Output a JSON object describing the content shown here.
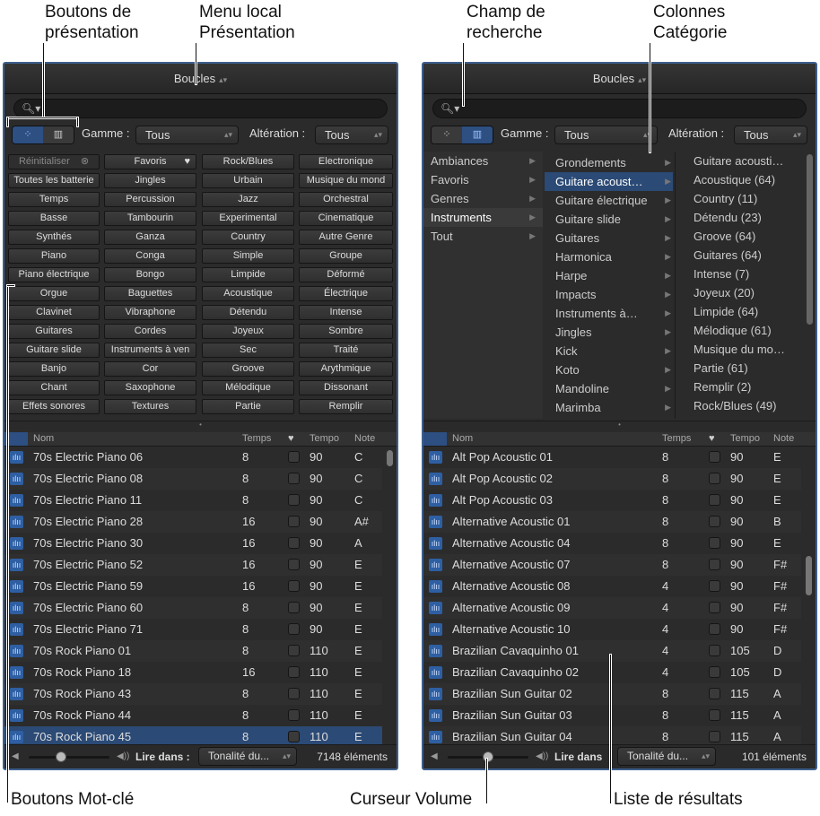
{
  "callouts": {
    "view_buttons": "Boutons de présentation",
    "view_menu": "Menu local Présentation",
    "search_field": "Champ de recherche",
    "category_columns": "Colonnes Catégorie",
    "keyword_buttons": "Boutons Mot-clé",
    "volume_slider": "Curseur Volume",
    "results_list": "Liste de résultats"
  },
  "icons": {
    "search": "search-icon",
    "button_view": "grid-icon",
    "column_view": "columns-icon",
    "favorite": "heart-icon",
    "loop": "waveform-icon",
    "volume": "speaker-icon"
  },
  "colors": {
    "accent": "#2b4a75",
    "panel_bg": "#2b2b2b",
    "frame": "#3d5f8c"
  },
  "left": {
    "title": "Boucles",
    "gamme_label": "Gamme :",
    "gamme_value": "Tous",
    "alteration_label": "Altération :",
    "alteration_value": "Tous",
    "keywords": [
      [
        "Réinitialiser",
        "Favoris",
        "Rock/Blues",
        "Electronique"
      ],
      [
        "Toutes les batterie",
        "Jingles",
        "Urbain",
        "Musique du mond"
      ],
      [
        "Temps",
        "Percussion",
        "Jazz",
        "Orchestral"
      ],
      [
        "Basse",
        "Tambourin",
        "Experimental",
        "Cinematique"
      ],
      [
        "Synthés",
        "Ganza",
        "Country",
        "Autre Genre"
      ],
      [
        "Piano",
        "Conga",
        "Simple",
        "Groupe"
      ],
      [
        "Piano électrique",
        "Bongo",
        "Limpide",
        "Déformé"
      ],
      [
        "Orgue",
        "Baguettes",
        "Acoustique",
        "Électrique"
      ],
      [
        "Clavinet",
        "Vibraphone",
        "Détendu",
        "Intense"
      ],
      [
        "Guitares",
        "Cordes",
        "Joyeux",
        "Sombre"
      ],
      [
        "Guitare slide",
        "Instruments à ven",
        "Sec",
        "Traité"
      ],
      [
        "Banjo",
        "Cor",
        "Groove",
        "Arythmique"
      ],
      [
        "Chant",
        "Saxophone",
        "Mélodique",
        "Dissonant"
      ],
      [
        "Effets sonores",
        "Textures",
        "Partie",
        "Remplir"
      ]
    ],
    "columns": {
      "name": "Nom",
      "beats": "Temps",
      "tempo": "Tempo",
      "key": "Note"
    },
    "rows": [
      [
        "70s Electric Piano 06",
        "8",
        "90",
        "C"
      ],
      [
        "70s Electric Piano 08",
        "8",
        "90",
        "C"
      ],
      [
        "70s Electric Piano 11",
        "8",
        "90",
        "C"
      ],
      [
        "70s Electric Piano 28",
        "16",
        "90",
        "A#"
      ],
      [
        "70s Electric Piano 30",
        "16",
        "90",
        "A"
      ],
      [
        "70s Electric Piano 52",
        "16",
        "90",
        "E"
      ],
      [
        "70s Electric Piano 59",
        "16",
        "90",
        "E"
      ],
      [
        "70s Electric Piano 60",
        "8",
        "90",
        "E"
      ],
      [
        "70s Electric Piano 71",
        "8",
        "90",
        "E"
      ],
      [
        "70s Rock Piano 01",
        "8",
        "110",
        "E"
      ],
      [
        "70s Rock Piano 18",
        "16",
        "110",
        "E"
      ],
      [
        "70s Rock Piano 43",
        "8",
        "110",
        "E"
      ],
      [
        "70s Rock Piano 44",
        "8",
        "110",
        "E"
      ],
      [
        "70s Rock Piano 45",
        "8",
        "110",
        "E"
      ]
    ],
    "selected_row": 13,
    "play_in_label": "Lire dans :",
    "play_in_value": "Tonalité du...",
    "count": "7148 éléments",
    "volume": 0.4
  },
  "right": {
    "title": "Boucles",
    "gamme_label": "Gamme :",
    "gamme_value": "Tous",
    "alteration_label": "Altération :",
    "alteration_value": "Tous",
    "col1": [
      "Ambiances",
      "Favoris",
      "Genres",
      "Instruments",
      "Tout"
    ],
    "col1_selected": 3,
    "col2": [
      "Grondements",
      "Guitare acoust…",
      "Guitare électrique",
      "Guitare slide",
      "Guitares",
      "Harmonica",
      "Harpe",
      "Impacts",
      "Instruments à…",
      "Jingles",
      "Kick",
      "Koto",
      "Mandoline",
      "Marimba"
    ],
    "col2_selected": 1,
    "col3": [
      "Guitare acousti…",
      "Acoustique (64)",
      "Country (11)",
      "Détendu (23)",
      "Groove (64)",
      "Guitares (64)",
      "Intense (7)",
      "Joyeux (20)",
      "Limpide (64)",
      "Mélodique (61)",
      "Musique du mo…",
      "Partie (61)",
      "Remplir (2)",
      "Rock/Blues (49)"
    ],
    "columns": {
      "name": "Nom",
      "beats": "Temps",
      "tempo": "Tempo",
      "key": "Note"
    },
    "rows": [
      [
        "Alt Pop Acoustic 01",
        "8",
        "90",
        "E"
      ],
      [
        "Alt Pop Acoustic 02",
        "8",
        "90",
        "E"
      ],
      [
        "Alt Pop Acoustic 03",
        "8",
        "90",
        "E"
      ],
      [
        "Alternative Acoustic 01",
        "8",
        "90",
        "B"
      ],
      [
        "Alternative Acoustic 04",
        "8",
        "90",
        "E"
      ],
      [
        "Alternative Acoustic 07",
        "8",
        "90",
        "F#"
      ],
      [
        "Alternative Acoustic 08",
        "4",
        "90",
        "F#"
      ],
      [
        "Alternative Acoustic 09",
        "4",
        "90",
        "F#"
      ],
      [
        "Alternative Acoustic 10",
        "4",
        "90",
        "F#"
      ],
      [
        "Brazilian Cavaquinho 01",
        "4",
        "105",
        "D"
      ],
      [
        "Brazilian Cavaquinho 02",
        "4",
        "105",
        "D"
      ],
      [
        "Brazilian Sun Guitar 02",
        "8",
        "115",
        "A"
      ],
      [
        "Brazilian Sun Guitar 03",
        "8",
        "115",
        "A"
      ],
      [
        "Brazilian Sun Guitar 04",
        "8",
        "115",
        "A"
      ]
    ],
    "play_in_label": "Lire dans",
    "play_in_value": "Tonalité du...",
    "count": "101 éléments",
    "volume": 0.5
  }
}
